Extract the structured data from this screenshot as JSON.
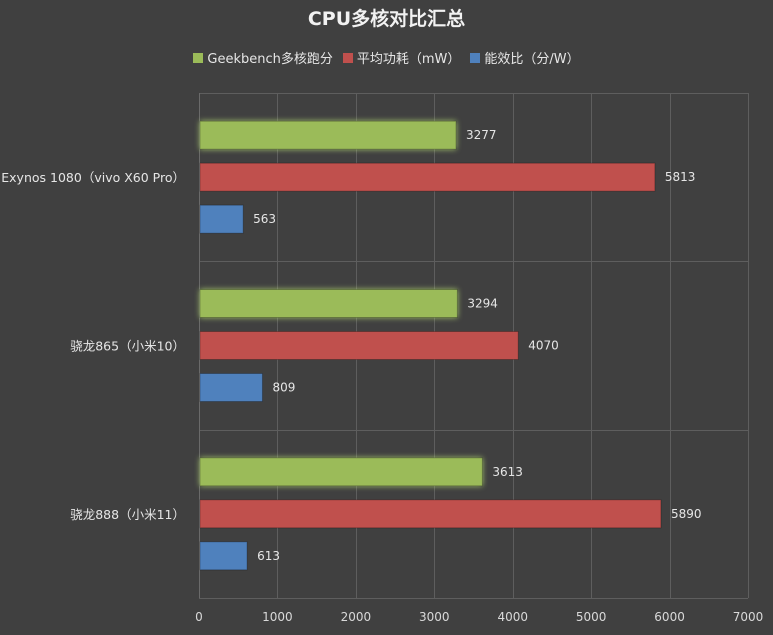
{
  "chart_data": {
    "type": "bar",
    "orientation": "horizontal",
    "title": "CPU多核对比汇总",
    "categories": [
      "Exynos 1080（vivo X60 Pro）",
      "骁龙865（小米10）",
      "骁龙888（小米11）"
    ],
    "series": [
      {
        "name": "Geekbench多核跑分",
        "color": "#9bbb59",
        "values": [
          3277,
          3294,
          3613
        ]
      },
      {
        "name": "平均功耗（mW）",
        "color": "#c0504d",
        "values": [
          5813,
          4070,
          5890
        ]
      },
      {
        "name": "能效比（分/W）",
        "color": "#4f81bd",
        "values": [
          563,
          809,
          613
        ]
      }
    ],
    "xlim": [
      0,
      7000
    ],
    "xticks": [
      0,
      1000,
      2000,
      3000,
      4000,
      5000,
      6000,
      7000
    ],
    "grid": true,
    "legend_position": "top"
  }
}
